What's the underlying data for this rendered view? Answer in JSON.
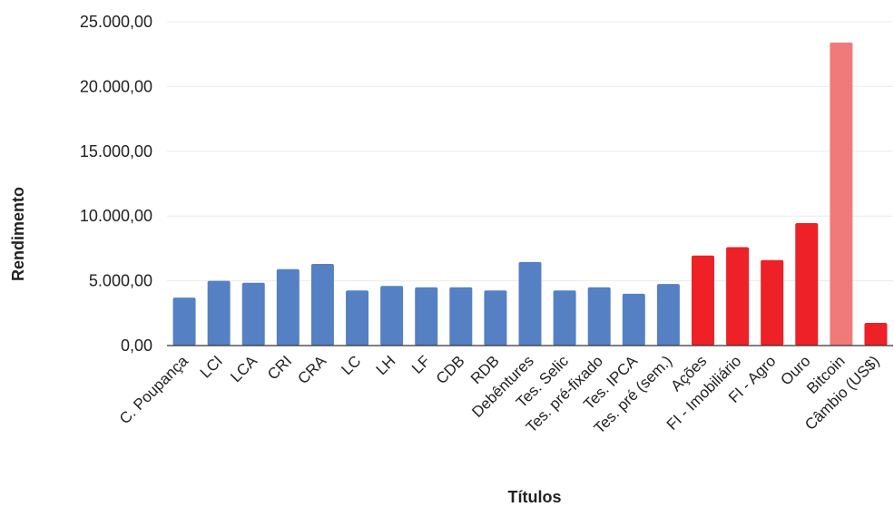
{
  "chart_data": {
    "type": "bar",
    "xlabel": "Títulos",
    "ylabel": "Rendimento",
    "ylim": [
      0,
      25000
    ],
    "ytick_values": [
      0,
      5000,
      10000,
      15000,
      20000,
      25000
    ],
    "ytick_labels": [
      "0,00",
      "5.000,00",
      "10.000,00",
      "15.000,00",
      "20.000,00",
      "25.000,00"
    ],
    "grid": true,
    "categories": [
      "C. Poupança",
      "LCI",
      "LCA",
      "CRI",
      "CRA",
      "LC",
      "LH",
      "LF",
      "CDB",
      "RDB",
      "Debêntures",
      "Tes. Selic",
      "Tes. pré-fixado",
      "Tes. IPCA",
      "Tes. pré (sem.)",
      "Ações",
      "FI - Imobiliário",
      "FI - Agro",
      "Ouro",
      "Bitcoin",
      "Câmbio (US$)"
    ],
    "values": [
      3700,
      5000,
      4850,
      5900,
      6300,
      4250,
      4600,
      4500,
      4500,
      4250,
      6450,
      4250,
      4500,
      4000,
      4750,
      6950,
      7600,
      6600,
      9450,
      23400,
      1750
    ],
    "bar_colors": [
      "#5580c4",
      "#5580c4",
      "#5580c4",
      "#5580c4",
      "#5580c4",
      "#5580c4",
      "#5580c4",
      "#5580c4",
      "#5580c4",
      "#5580c4",
      "#5580c4",
      "#5580c4",
      "#5580c4",
      "#5580c4",
      "#5580c4",
      "#ed2126",
      "#ed2126",
      "#ed2126",
      "#ed2126",
      "#f07a7a",
      "#ed2126"
    ]
  }
}
